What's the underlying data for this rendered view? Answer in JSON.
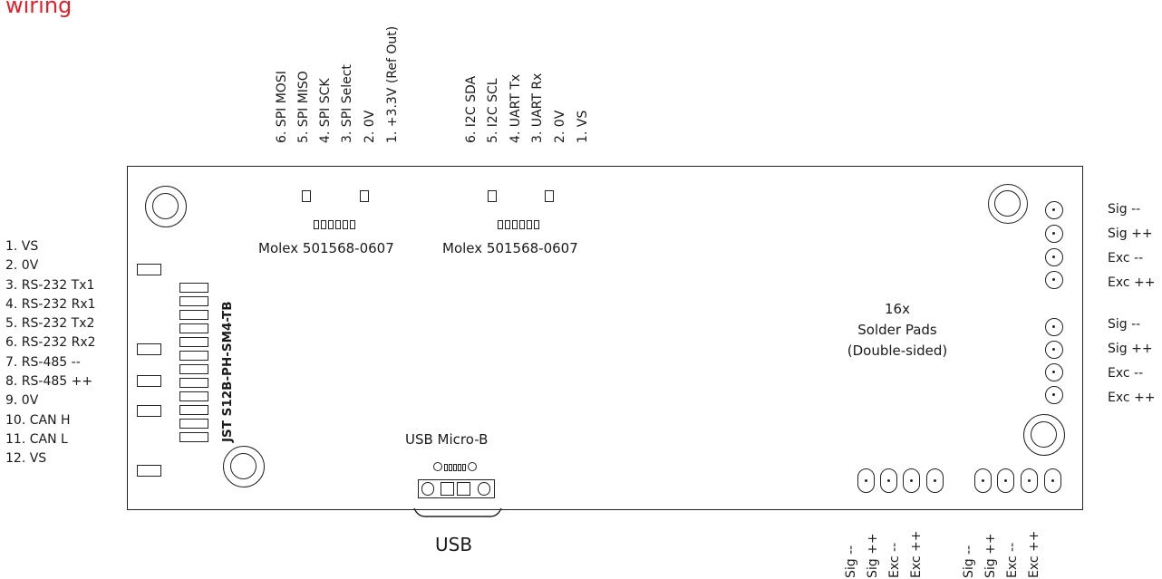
{
  "title": "wiring",
  "spi_connector": {
    "pins": [
      "6. SPI MOSI",
      "5. SPI MISO",
      "4. SPI SCK",
      "3. SPI Select",
      "2. 0V",
      "1. +3.3V (Ref Out)"
    ],
    "label": "Molex 501568-0607"
  },
  "i2c_connector": {
    "pins": [
      "6. I2C SDA",
      "5. I2C SCL",
      "4. UART Tx",
      "3. UART Rx",
      "2. 0V",
      "1. VS"
    ],
    "label": "Molex 501568-0607"
  },
  "jst_connector": {
    "label": "JST S12B-PH-SM4-TB",
    "pins": [
      "1. VS",
      "2. 0V",
      "3. RS-232 Tx1",
      "4. RS-232 Rx1",
      "5. RS-232 Tx2",
      "6. RS-232 Rx2",
      "7. RS-485 --",
      "8. RS-485 ++",
      "9. 0V",
      "10. CAN H",
      "11. CAN L",
      "12. VS"
    ]
  },
  "solder_pads": {
    "label_line1": "16x",
    "label_line2": "Solder Pads",
    "label_line3": "(Double-sided)",
    "right_group_1": [
      "Sig --",
      "Sig ++",
      "Exc --",
      "Exc ++"
    ],
    "right_group_2": [
      "Sig --",
      "Sig ++",
      "Exc --",
      "Exc ++"
    ],
    "bottom_group_1": [
      "Sig --",
      "Sig ++",
      "Exc --",
      "Exc ++"
    ],
    "bottom_group_2": [
      "Sig --",
      "Sig ++",
      "Exc --",
      "Exc ++"
    ]
  },
  "usb": {
    "connector_label": "USB Micro-B",
    "cable_label": "USB"
  }
}
